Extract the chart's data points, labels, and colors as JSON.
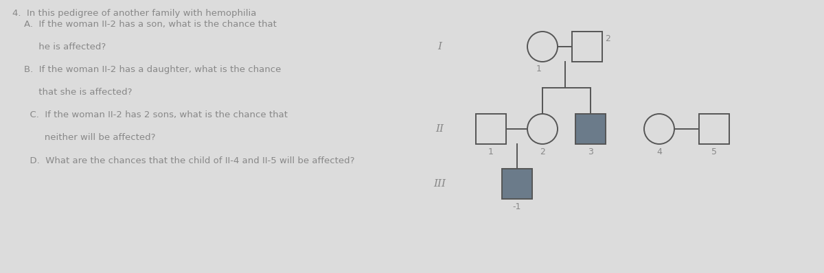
{
  "bg_color": "#dcdcdc",
  "text_color": "#888888",
  "shape_edge_color": "#555555",
  "filled_color": "#6b7b8a",
  "empty_fill": "#dcdcdc",
  "line_color": "#555555",
  "gen_labels": [
    "I",
    "II",
    "III"
  ],
  "number_label_III": "-1",
  "question_text": "4.  In this pedigree of another family with hemophilia\n    A.  If the woman II-2 has a son, what is the chance that\n\n         he is affected?\n\n    B.  If the woman II-2 has a daughter, what is the chance\n\n         that she is affected?\n\n      C.  If the woman II-2 has 2 sons, what is the chance that\n\n           neither will be affected?\n\n      D.  What are the chances that the child of II-4 and II-5 will be affected?"
}
